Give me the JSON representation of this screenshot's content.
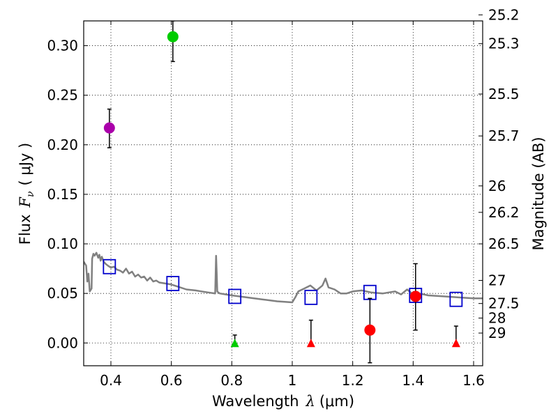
{
  "chart_data": {
    "type": "scatter",
    "xlabel_prefix": "Wavelength",
    "xlabel_symbol": "λ",
    "xlabel_unit": "(μm)",
    "ylabel_prefix": "Flux",
    "ylabel_symbol": "F",
    "ylabel_subscript": "ν",
    "ylabel_unit": "( μJy )",
    "y2label": "Magnitude (AB)",
    "xlim": [
      0.31,
      1.63
    ],
    "ylim": [
      -0.023,
      0.325
    ],
    "grid": true,
    "x_ticks": [
      0.4,
      0.6,
      0.8,
      1.0,
      1.2,
      1.4,
      1.6
    ],
    "x_tick_labels": [
      "0.4",
      "0.6",
      "0.8",
      "1",
      "1.2",
      "1.4",
      "1.6"
    ],
    "y_ticks": [
      0.0,
      0.05,
      0.1,
      0.15,
      0.2,
      0.25,
      0.3
    ],
    "y_tick_labels": [
      "0.00",
      "0.05",
      "0.10",
      "0.15",
      "0.20",
      "0.25",
      "0.30"
    ],
    "y2_ticks": [
      {
        "label": "25.2",
        "flux": 0.3311
      },
      {
        "label": "25.3",
        "flux": 0.302
      },
      {
        "label": "25.5",
        "flux": 0.2512
      },
      {
        "label": "25.7",
        "flux": 0.2089
      },
      {
        "label": "26",
        "flux": 0.1585
      },
      {
        "label": "26.2",
        "flux": 0.1318
      },
      {
        "label": "26.5",
        "flux": 0.1
      },
      {
        "label": "27",
        "flux": 0.0631
      },
      {
        "label": "27.5",
        "flux": 0.0398
      },
      {
        "label": "28",
        "flux": 0.0251
      },
      {
        "label": "29",
        "flux": 0.01
      }
    ],
    "series": [
      {
        "name": "template-spectrum",
        "kind": "line",
        "color": "#808080",
        "x": [
          0.31,
          0.318,
          0.322,
          0.326,
          0.33,
          0.336,
          0.338,
          0.342,
          0.346,
          0.352,
          0.358,
          0.362,
          0.366,
          0.37,
          0.376,
          0.382,
          0.39,
          0.4,
          0.41,
          0.42,
          0.43,
          0.44,
          0.45,
          0.46,
          0.47,
          0.48,
          0.49,
          0.5,
          0.51,
          0.52,
          0.53,
          0.54,
          0.55,
          0.56,
          0.58,
          0.6,
          0.62,
          0.65,
          0.68,
          0.7,
          0.72,
          0.745,
          0.748,
          0.75,
          0.752,
          0.755,
          0.76,
          0.78,
          0.8,
          0.85,
          0.9,
          0.95,
          1.0,
          1.01,
          1.02,
          1.04,
          1.06,
          1.08,
          1.1,
          1.11,
          1.12,
          1.14,
          1.16,
          1.18,
          1.2,
          1.23,
          1.26,
          1.3,
          1.34,
          1.36,
          1.38,
          1.4,
          1.42,
          1.45,
          1.5,
          1.55,
          1.6,
          1.63
        ],
        "y": [
          0.082,
          0.078,
          0.062,
          0.07,
          0.052,
          0.055,
          0.085,
          0.09,
          0.088,
          0.091,
          0.086,
          0.089,
          0.083,
          0.087,
          0.082,
          0.08,
          0.078,
          0.076,
          0.077,
          0.074,
          0.073,
          0.071,
          0.075,
          0.07,
          0.072,
          0.067,
          0.069,
          0.066,
          0.067,
          0.063,
          0.066,
          0.062,
          0.063,
          0.061,
          0.06,
          0.059,
          0.057,
          0.054,
          0.053,
          0.052,
          0.051,
          0.05,
          0.088,
          0.07,
          0.052,
          0.051,
          0.05,
          0.049,
          0.048,
          0.046,
          0.044,
          0.042,
          0.041,
          0.046,
          0.052,
          0.055,
          0.058,
          0.053,
          0.058,
          0.065,
          0.056,
          0.054,
          0.05,
          0.05,
          0.052,
          0.053,
          0.051,
          0.05,
          0.052,
          0.049,
          0.054,
          0.049,
          0.05,
          0.048,
          0.047,
          0.046,
          0.045,
          0.045
        ]
      },
      {
        "name": "model-fluxes",
        "kind": "open-square",
        "color": "#0000cc",
        "points": [
          {
            "x": 0.395,
            "y": 0.077
          },
          {
            "x": 0.605,
            "y": 0.06
          },
          {
            "x": 0.81,
            "y": 0.047
          },
          {
            "x": 1.062,
            "y": 0.046
          },
          {
            "x": 1.257,
            "y": 0.051
          },
          {
            "x": 1.408,
            "y": 0.048
          },
          {
            "x": 1.542,
            "y": 0.044
          }
        ]
      },
      {
        "name": "detections",
        "kind": "filled-circle",
        "points": [
          {
            "x": 0.395,
            "y": 0.217,
            "err_lo": 0.197,
            "err_hi": 0.236,
            "color": "#aa00aa"
          },
          {
            "x": 0.605,
            "y": 0.309,
            "err_lo": 0.284,
            "err_hi": 0.325,
            "color": "#00cc00"
          },
          {
            "x": 1.257,
            "y": 0.013,
            "err_lo": -0.02,
            "err_hi": 0.045,
            "color": "#ff0000"
          },
          {
            "x": 1.408,
            "y": 0.047,
            "err_lo": 0.013,
            "err_hi": 0.08,
            "color": "#ff0000"
          }
        ]
      },
      {
        "name": "upper-limits",
        "kind": "triangle",
        "points": [
          {
            "x": 0.81,
            "y": 0.0,
            "err_hi": 0.008,
            "color": "#00cc00"
          },
          {
            "x": 1.062,
            "y": 0.0,
            "err_hi": 0.023,
            "color": "#ff0000"
          },
          {
            "x": 1.542,
            "y": 0.0,
            "err_hi": 0.017,
            "color": "#ff0000"
          }
        ]
      }
    ]
  }
}
